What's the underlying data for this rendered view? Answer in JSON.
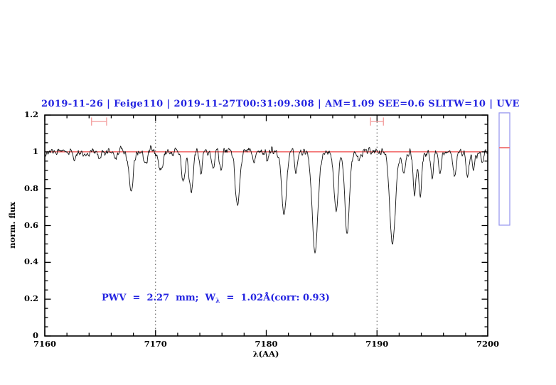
{
  "chart_data": {
    "type": "line",
    "title": "2019-11-26 | Feige110 | 2019-11-27T00:31:09.308 | AM=1.09 SEE=0.6 SLITW=10 | UVE",
    "xlabel": "λ(AA)",
    "ylabel": "norm. flux",
    "xlim": [
      7160,
      7200
    ],
    "ylim": [
      0,
      1.2
    ],
    "xticks": {
      "major": [
        7160,
        7170,
        7180,
        7190,
        7200
      ],
      "labels": [
        "7160",
        "7170",
        "7180",
        "7190",
        "7200"
      ],
      "minor_step": 2
    },
    "yticks": {
      "major": [
        0,
        0.2,
        0.4,
        0.6,
        0.8,
        1,
        1.2
      ],
      "labels": [
        "0",
        "0.2",
        "0.4",
        "0.6",
        "0.8",
        "1",
        "1.2"
      ],
      "minor_step": 0.05
    },
    "grid": "off",
    "legend": "none",
    "continuum_level": 1.0,
    "noise_sigma": 0.011,
    "series_color": "#151515",
    "text_color": "#2323e1",
    "reference_line": {
      "y": 1.0,
      "color": "#ee3030"
    },
    "dotted_vlines": {
      "x": [
        7170,
        7190
      ],
      "color": "#4a4a4a"
    },
    "range_markers": {
      "color": "#f4a2a2",
      "items": [
        {
          "x_center": 7164.9,
          "half_width": 0.68,
          "y": 1.165,
          "cap_half_height": 0.022
        },
        {
          "x_center": 7190.0,
          "half_width": 0.58,
          "y": 1.165,
          "cap_half_height": 0.022
        }
      ]
    },
    "absorption_lines": [
      {
        "wavelength": 7162.7,
        "min_flux": 0.95,
        "sigma": 0.12
      },
      {
        "wavelength": 7163.7,
        "min_flux": 0.962,
        "sigma": 0.1
      },
      {
        "wavelength": 7164.9,
        "min_flux": 0.958,
        "sigma": 0.1
      },
      {
        "wavelength": 7166.4,
        "min_flux": 0.955,
        "sigma": 0.1
      },
      {
        "wavelength": 7167.8,
        "min_flux": 0.78,
        "sigma": 0.2
      },
      {
        "wavelength": 7169.1,
        "min_flux": 0.94,
        "sigma": 0.12
      },
      {
        "wavelength": 7170.5,
        "min_flux": 0.885,
        "sigma": 0.16
      },
      {
        "wavelength": 7172.5,
        "min_flux": 0.835,
        "sigma": 0.15
      },
      {
        "wavelength": 7173.2,
        "min_flux": 0.78,
        "sigma": 0.18
      },
      {
        "wavelength": 7174.1,
        "min_flux": 0.89,
        "sigma": 0.12
      },
      {
        "wavelength": 7175.2,
        "min_flux": 0.92,
        "sigma": 0.12
      },
      {
        "wavelength": 7175.9,
        "min_flux": 0.9,
        "sigma": 0.12
      },
      {
        "wavelength": 7177.4,
        "min_flux": 0.7,
        "sigma": 0.2
      },
      {
        "wavelength": 7178.9,
        "min_flux": 0.94,
        "sigma": 0.12
      },
      {
        "wavelength": 7180.1,
        "min_flux": 0.945,
        "sigma": 0.1
      },
      {
        "wavelength": 7181.6,
        "min_flux": 0.66,
        "sigma": 0.22
      },
      {
        "wavelength": 7182.7,
        "min_flux": 0.88,
        "sigma": 0.13
      },
      {
        "wavelength": 7184.4,
        "min_flux": 0.46,
        "sigma": 0.26
      },
      {
        "wavelength": 7186.3,
        "min_flux": 0.68,
        "sigma": 0.18
      },
      {
        "wavelength": 7187.3,
        "min_flux": 0.54,
        "sigma": 0.2
      },
      {
        "wavelength": 7188.4,
        "min_flux": 0.96,
        "sigma": 0.1
      },
      {
        "wavelength": 7191.4,
        "min_flux": 0.505,
        "sigma": 0.26
      },
      {
        "wavelength": 7192.4,
        "min_flux": 0.88,
        "sigma": 0.14
      },
      {
        "wavelength": 7193.4,
        "min_flux": 0.77,
        "sigma": 0.14
      },
      {
        "wavelength": 7193.9,
        "min_flux": 0.76,
        "sigma": 0.14
      },
      {
        "wavelength": 7195.0,
        "min_flux": 0.87,
        "sigma": 0.12
      },
      {
        "wavelength": 7195.7,
        "min_flux": 0.89,
        "sigma": 0.12
      },
      {
        "wavelength": 7197.0,
        "min_flux": 0.87,
        "sigma": 0.14
      },
      {
        "wavelength": 7198.2,
        "min_flux": 0.86,
        "sigma": 0.13
      },
      {
        "wavelength": 7198.7,
        "min_flux": 0.89,
        "sigma": 0.1
      },
      {
        "wavelength": 7199.5,
        "min_flux": 0.93,
        "sigma": 0.1
      }
    ],
    "annotation": {
      "prefix": "PWV  =  2.27  mm;  W",
      "subscript": "λ",
      "suffix": "  =  1.02Å(corr: 0.93)"
    },
    "side_gauge": {
      "border_color": "#9292ee",
      "marker_color": "#f07a7a",
      "top_flux": 1.212,
      "bottom_flux": 0.602,
      "marker_flux": 1.023
    }
  }
}
